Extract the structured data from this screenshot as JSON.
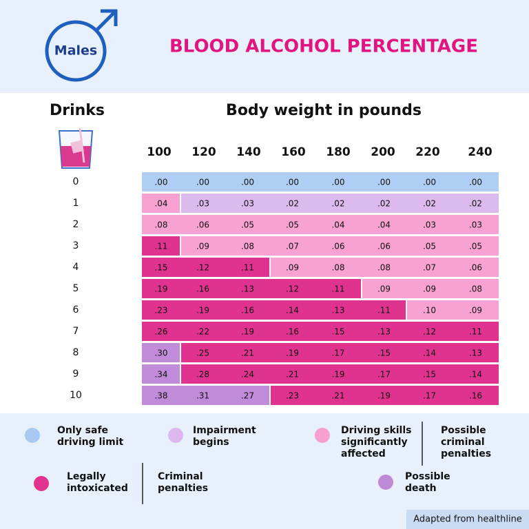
{
  "header": {
    "badge": "Males",
    "title": "BLOOD ALCOHOL PERCENTAGE"
  },
  "table": {
    "row_heading": "Drinks",
    "column_heading": "Body weight in pounds",
    "weights": [
      "100",
      "120",
      "140",
      "160",
      "180",
      "200",
      "220",
      "240"
    ],
    "rows": [
      {
        "drinks": "0",
        "segments": [
          {
            "color": "#b0cdf4",
            "values": [
              ".00",
              ".00",
              ".00",
              ".00",
              ".00",
              ".00",
              ".00",
              ".00"
            ]
          }
        ]
      },
      {
        "drinks": "1",
        "segments": [
          {
            "color": "#f8a2d3",
            "values": [
              ".04"
            ]
          },
          {
            "color": "#dcbaee",
            "values": [
              ".03",
              ".03",
              ".02",
              ".02",
              ".02",
              ".02",
              ".02"
            ]
          }
        ]
      },
      {
        "drinks": "2",
        "segments": [
          {
            "color": "#f8a2d3",
            "values": [
              ".08",
              ".06",
              ".05",
              ".05",
              ".04",
              ".04",
              ".03",
              ".03"
            ]
          }
        ]
      },
      {
        "drinks": "3",
        "segments": [
          {
            "color": "#e0338f",
            "values": [
              ".11"
            ]
          },
          {
            "color": "#f8a2d3",
            "values": [
              ".09",
              ".08",
              ".07",
              ".06",
              ".06",
              ".05",
              ".05"
            ]
          }
        ]
      },
      {
        "drinks": "4",
        "segments": [
          {
            "color": "#e0338f",
            "values": [
              ".15",
              ".12",
              ".11"
            ]
          },
          {
            "color": "#f8a2d3",
            "values": [
              ".09",
              ".08",
              ".08",
              ".07",
              ".06"
            ]
          }
        ]
      },
      {
        "drinks": "5",
        "segments": [
          {
            "color": "#e0338f",
            "values": [
              ".19",
              ".16",
              ".13",
              ".12",
              ".11"
            ]
          },
          {
            "color": "#f8a2d3",
            "values": [
              ".09",
              ".09",
              ".08"
            ]
          }
        ]
      },
      {
        "drinks": "6",
        "segments": [
          {
            "color": "#e0338f",
            "values": [
              ".23",
              ".19",
              ".16",
              ".14",
              ".13",
              ".11"
            ]
          },
          {
            "color": "#f8a2d3",
            "values": [
              ".10",
              ".09"
            ]
          }
        ]
      },
      {
        "drinks": "7",
        "segments": [
          {
            "color": "#e0338f",
            "values": [
              ".26",
              ".22",
              ".19",
              ".16",
              ".15",
              ".13",
              ".12",
              ".11"
            ]
          }
        ]
      },
      {
        "drinks": "8",
        "segments": [
          {
            "color": "#c08bd8",
            "values": [
              ".30"
            ]
          },
          {
            "color": "#e0338f",
            "values": [
              ".25",
              ".21",
              ".19",
              ".17",
              ".15",
              ".14",
              ".13"
            ]
          }
        ]
      },
      {
        "drinks": "9",
        "segments": [
          {
            "color": "#c08bd8",
            "values": [
              ".34"
            ]
          },
          {
            "color": "#e0338f",
            "values": [
              ".28",
              ".24",
              ".21",
              ".19",
              ".17",
              ".15",
              ".14"
            ]
          }
        ]
      },
      {
        "drinks": "10",
        "segments": [
          {
            "color": "#c08bd8",
            "values": [
              ".38",
              ".31",
              ".27"
            ]
          },
          {
            "color": "#e0338f",
            "values": [
              ".23",
              ".21",
              ".19",
              ".17",
              ".16"
            ]
          }
        ]
      }
    ]
  },
  "legend": [
    {
      "color": "#a9c8f2",
      "lines": [
        "Only safe",
        "driving limit"
      ]
    },
    {
      "color": "#dcb8ef",
      "lines": [
        "Impairment",
        "begins"
      ]
    },
    {
      "color": "#f79fd0",
      "lines": [
        "Driving skills",
        "significantly",
        "affected"
      ],
      "note_lines": [
        "Possible",
        "criminal",
        "penalties"
      ]
    },
    {
      "color": "#e2338e",
      "lines": [
        "Legally",
        "intoxicated"
      ],
      "note_lines": [
        "Criminal",
        "penalties"
      ]
    },
    {
      "color": "#bf8ad6",
      "lines": [
        "Possible",
        "death"
      ]
    }
  ],
  "footer": {
    "source": "Adapted from healthline"
  }
}
